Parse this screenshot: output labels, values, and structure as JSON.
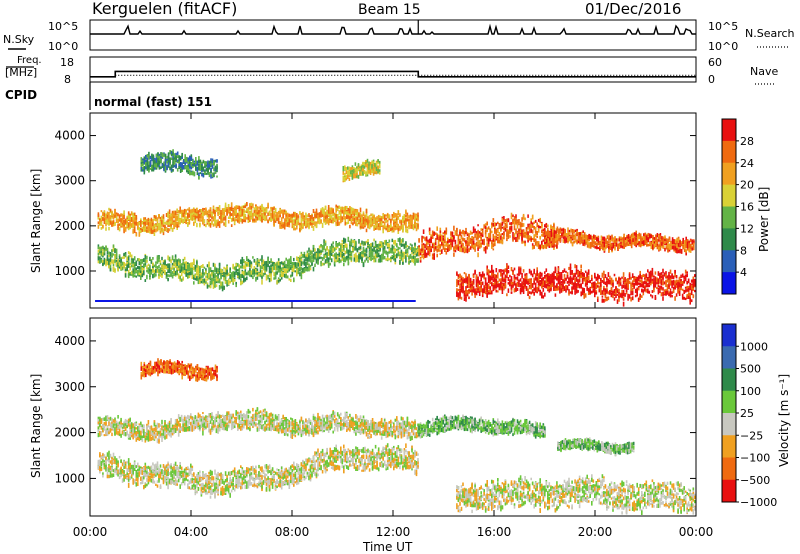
{
  "header": {
    "station": "Kerguelen (fitACF)",
    "beam": "Beam 15",
    "date": "01/Dec/2016"
  },
  "top_panels": {
    "nsky_label": "N.Sky",
    "nsky_ticks": [
      "10^5",
      "10^0"
    ],
    "nsearch_label": "N.Search",
    "freq_label": "Freq.",
    "freq_unit": "[MHz]",
    "freq_ticks": [
      "18",
      "8"
    ],
    "nave_label": "Nave",
    "nave_ticks": [
      "60",
      "0"
    ],
    "cpid_label": "CPID",
    "cpid_text": "normal (fast) 151",
    "freq_steps_mhz": [
      {
        "t": 0.0,
        "v": 9.6
      },
      {
        "t": 1.0,
        "v": 12.3
      },
      {
        "t": 13.0,
        "v": 9.6
      },
      {
        "t": 24.0,
        "v": 9.6
      }
    ],
    "nave_level": 14
  },
  "power_panel": {
    "ylabel": "Slant Range [km]",
    "y_ticks": [
      "1000",
      "2000",
      "3000",
      "4000"
    ],
    "colorbar_label": "Power [dB]",
    "colorbar_ticks": [
      "4",
      "8",
      "12",
      "16",
      "20",
      "24",
      "28"
    ],
    "colorbar_colors": [
      "#0a14e6",
      "#2a5fb8",
      "#2f8a4a",
      "#63b346",
      "#d9d136",
      "#f0a020",
      "#ef6a10",
      "#e81010"
    ]
  },
  "velocity_panel": {
    "ylabel": "Slant Range [km]",
    "y_ticks": [
      "1000",
      "2000",
      "3000",
      "4000"
    ],
    "colorbar_label": "Velocity [m s⁻¹]",
    "colorbar_ticks": [
      "1000",
      "500",
      "100",
      "25",
      "−25",
      "−100",
      "−500",
      "−1000"
    ],
    "colorbar_colors": [
      "#1a2fd0",
      "#3a6ab0",
      "#2f8a4a",
      "#6ac83a",
      "#c8c8c0",
      "#f0a020",
      "#ef6a10",
      "#e81010"
    ]
  },
  "x_axis": {
    "label": "Time UT",
    "ticks": [
      "00:00",
      "04:00",
      "08:00",
      "12:00",
      "16:00",
      "20:00",
      "00:00"
    ]
  },
  "chart_data": {
    "type": "heatmap",
    "x_range_hours": [
      0,
      24
    ],
    "y_range_km": [
      180,
      4500
    ],
    "power_bands": [
      {
        "t": [
          0.3,
          13.0
        ],
        "center_km": [
          2100,
          2050,
          2300,
          2150,
          2200,
          2000
        ],
        "width_km": 200,
        "color_index": 5
      },
      {
        "t": [
          0.3,
          13.0
        ],
        "center_km": [
          1300,
          1050,
          900,
          1100,
          1500,
          1350
        ],
        "width_km": 250,
        "color_index": 3
      },
      {
        "t": [
          2.0,
          5.0
        ],
        "center_km": [
          3350,
          3400,
          3300
        ],
        "width_km": 200,
        "color_index": 2
      },
      {
        "t": [
          10.0,
          11.5
        ],
        "center_km": [
          3200,
          3250
        ],
        "width_km": 150,
        "color_index": 4
      },
      {
        "t": [
          13.0,
          18.5
        ],
        "center_km": [
          1500,
          1700,
          1900,
          1800
        ],
        "width_km": 300,
        "color_index": 6
      },
      {
        "t": [
          14.5,
          24.0
        ],
        "center_km": [
          700,
          800,
          650,
          700
        ],
        "width_km": 300,
        "color_index": 7
      },
      {
        "t": [
          18.0,
          24.0
        ],
        "center_km": [
          1750,
          1650,
          1600
        ],
        "width_km": 150,
        "color_index": 6
      }
    ],
    "velocity_bands": [
      {
        "t": [
          0.3,
          13.0
        ],
        "center_km": [
          2100,
          2050,
          2300,
          2150,
          2200,
          2000
        ],
        "width_km": 200,
        "color_index": 4
      },
      {
        "t": [
          0.3,
          13.0
        ],
        "center_km": [
          1300,
          1050,
          900,
          1100,
          1500,
          1350
        ],
        "width_km": 250,
        "color_index": 4
      },
      {
        "t": [
          2.0,
          5.0
        ],
        "center_km": [
          3350,
          3400,
          3300
        ],
        "width_km": 150,
        "color_index": 6
      },
      {
        "t": [
          13.0,
          18.0
        ],
        "center_km": [
          2100,
          2200,
          2000
        ],
        "width_km": 150,
        "color_index": 3
      },
      {
        "t": [
          14.5,
          24.0
        ],
        "center_km": [
          600,
          700,
          550
        ],
        "width_km": 300,
        "color_index": 4
      },
      {
        "t": [
          18.5,
          21.5
        ],
        "center_km": [
          1700,
          1700
        ],
        "width_km": 100,
        "color_index": 3
      }
    ]
  }
}
